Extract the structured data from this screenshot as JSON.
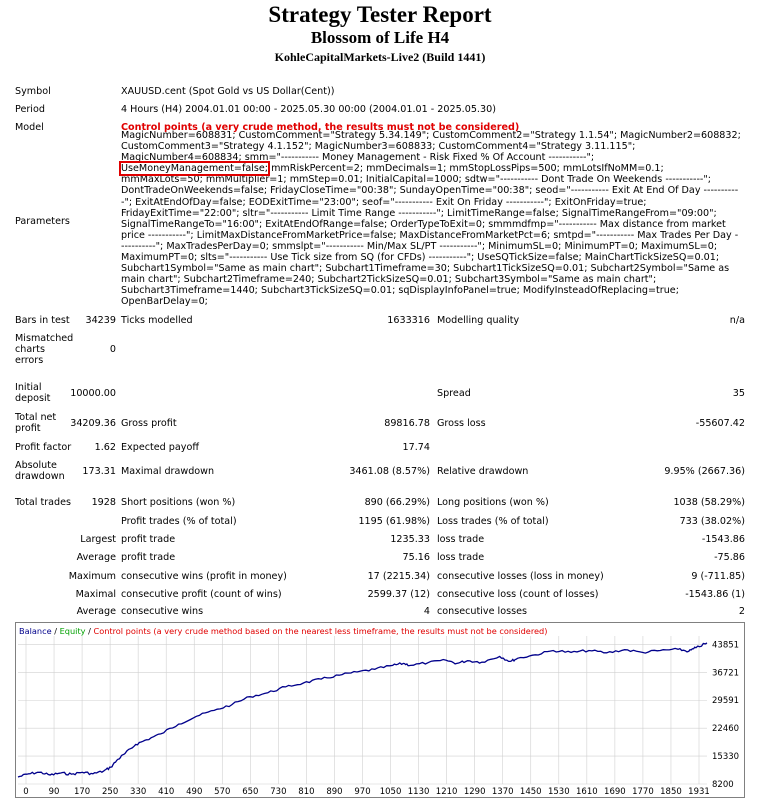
{
  "header": {
    "title": "Strategy Tester Report",
    "subtitle": "Blossom of Life H4",
    "server": "KohleCapitalMarkets-Live2 (Build 1441)"
  },
  "info": {
    "symbol_label": "Symbol",
    "symbol_value": "XAUUSD.cent (Spot Gold vs US Dollar(Cent))",
    "period_label": "Period",
    "period_value": "4 Hours (H4) 2004.01.01 00:00 - 2025.05.30 00:00 (2004.01.01 - 2025.05.30)",
    "model_label": "Model",
    "model_value": "Control points (a very crude method, the results must not be considered)",
    "parameters_label": "Parameters",
    "params_before": "MagicNumber=608831; CustomComment=\"Strategy 5.34.149\"; CustomComment2=\"Strategy 1.1.54\"; MagicNumber2=608832; CustomComment3=\"Strategy 4.1.152\"; MagicNumber3=608833; CustomComment4=\"Strategy 3.11.115\"; MagicNumber4=608834; smm=\"----------- Money Management - Risk Fixed % Of Account -----------\"; ",
    "params_highlight": "UseMoneyManagement=false;",
    "params_after": " mmRiskPercent=2; mmDecimals=1; mmStopLossPips=500; mmLotsIfNoMM=0.1; mmMaxLots=50; mmMultiplier=1; mmStep=0.01; InitialCapital=1000; sdtw=\"----------- Dont Trade On Weekends -----------\"; DontTradeOnWeekends=false; FridayCloseTime=\"00:38\"; SundayOpenTime=\"00:38\"; seod=\"----------- Exit At End Of Day -----------\"; ExitAtEndOfDay=false; EODExitTime=\"23:00\"; seof=\"----------- Exit On Friday -----------\"; ExitOnFriday=true; FridayExitTime=\"22:00\"; sltr=\"----------- Limit Time Range -----------\"; LimitTimeRange=false; SignalTimeRangeFrom=\"09:00\"; SignalTimeRangeTo=\"16:00\"; ExitAtEndOfRange=false; OrderTypeToExit=0; smmmdfmp=\"----------- Max distance from market price -----------\"; LimitMaxDistanceFromMarketPrice=false; MaxDistanceFromMarketPct=6; smtpd=\"----------- Max Trades Per Day -----------\"; MaxTradesPerDay=0; smmslpt=\"----------- Min/Max SL/PT -----------\"; MinimumSL=0; MinimumPT=0; MaximumSL=0; MaximumPT=0; slts=\"----------- Use Tick size from SQ (for CFDs) -----------\"; UseSQTickSize=false; MainChartTickSizeSQ=0.01; Subchart1Symbol=\"Same as main chart\"; Subchart1Timeframe=30; Subchart1TickSizeSQ=0.01; Subchart2Symbol=\"Same as main chart\"; Subchart2Timeframe=240; Subchart2TickSizeSQ=0.01; Subchart3Symbol=\"Same as main chart\"; Subchart3Timeframe=1440; Subchart3TickSizeSQ=0.01; sqDisplayInfoPanel=true; ModifyInsteadOfReplacing=true; OpenBarDelay=0;"
  },
  "stats": {
    "bars_label": "Bars in test",
    "bars_value": "34239",
    "ticks_label": "Ticks modelled",
    "ticks_value": "1633316",
    "quality_label": "Modelling quality",
    "quality_value": "n/a",
    "mismatch_label": "Mismatched charts errors",
    "mismatch_value": "0",
    "deposit_label": "Initial deposit",
    "deposit_value": "10000.00",
    "spread_label": "Spread",
    "spread_value": "35",
    "netprofit_label": "Total net profit",
    "netprofit_value": "34209.36",
    "grossprofit_label": "Gross profit",
    "grossprofit_value": "89816.78",
    "grossloss_label": "Gross loss",
    "grossloss_value": "-55607.42",
    "pf_label": "Profit factor",
    "pf_value": "1.62",
    "payoff_label": "Expected payoff",
    "payoff_value": "17.74",
    "absdd_label": "Absolute drawdown",
    "absdd_value": "173.31",
    "maxdd_label": "Maximal drawdown",
    "maxdd_value": "3461.08 (8.57%)",
    "reldd_label": "Relative drawdown",
    "reldd_value": "9.95% (2667.36)",
    "trades_label": "Total trades",
    "trades_value": "1928",
    "short_label": "Short positions (won %)",
    "short_value": "890 (66.29%)",
    "long_label": "Long positions (won %)",
    "long_value": "1038 (58.29%)",
    "ptrades_label": "Profit trades (% of total)",
    "ptrades_value": "1195 (61.98%)",
    "ltrades_label": "Loss trades (% of total)",
    "ltrades_value": "733 (38.02%)",
    "largest_label": "Largest",
    "largest_p_label": "profit trade",
    "largest_p_value": "1235.33",
    "largest_l_label": "loss trade",
    "largest_l_value": "-1543.86",
    "average_label": "Average",
    "average_p_label": "profit trade",
    "average_p_value": "75.16",
    "average_l_label": "loss trade",
    "average_l_value": "-75.86",
    "maximum_label": "Maximum",
    "maxwins_label": "consecutive wins (profit in money)",
    "maxwins_value": "17 (2215.34)",
    "maxlosses_label": "consecutive losses (loss in money)",
    "maxlosses_value": "9 (-711.85)",
    "maximal_label": "Maximal",
    "maxprofit_label": "consecutive profit (count of wins)",
    "maxprofit_value": "2599.37 (12)",
    "maxloss_label": "consecutive loss (count of losses)",
    "maxloss_value": "-1543.86 (1)",
    "avg2_label": "Average",
    "avgwins_label": "consecutive wins",
    "avgwins_value": "4",
    "avglosses_label": "consecutive losses",
    "avglosses_value": "2"
  },
  "legend": {
    "balance": "Balance",
    "sep1": " / ",
    "equity": "Equity",
    "sep2": " / ",
    "control": "Control points (a very crude method based on the nearest less timeframe, the results must not be considered)"
  },
  "chart_data": {
    "type": "line",
    "xlim": [
      0,
      1931
    ],
    "ylim": [
      8200,
      46000
    ],
    "x_ticks": [
      "0",
      "90",
      "170",
      "250",
      "330",
      "410",
      "490",
      "570",
      "650",
      "730",
      "810",
      "890",
      "970",
      "1050",
      "1130",
      "1210",
      "1290",
      "1370",
      "1450",
      "1530",
      "1610",
      "1690",
      "1770",
      "1850",
      "1931"
    ],
    "y_ticks": [
      43851,
      36721,
      29591,
      22460,
      15330,
      8200
    ],
    "colors": {
      "balance": "#00008b",
      "equity": "#00a000",
      "control": "#e00000",
      "grid": "#d0d0d0"
    },
    "series": [
      {
        "name": "Balance",
        "x": [
          0,
          30,
          60,
          90,
          120,
          150,
          180,
          210,
          240,
          260,
          280,
          300,
          330,
          360,
          400,
          450,
          500,
          550,
          600,
          650,
          700,
          750,
          800,
          850,
          900,
          950,
          1000,
          1050,
          1080,
          1100,
          1150,
          1200,
          1230,
          1260,
          1300,
          1350,
          1380,
          1400,
          1450,
          1500,
          1550,
          1600,
          1650,
          1700,
          1750,
          1800,
          1850,
          1880,
          1900,
          1931
        ],
        "y": [
          10000,
          10800,
          11200,
          10500,
          11000,
          10700,
          11200,
          10800,
          11500,
          12500,
          14500,
          16000,
          18300,
          19500,
          21000,
          23500,
          25500,
          27000,
          28500,
          30500,
          31500,
          33000,
          34000,
          35000,
          36000,
          36800,
          37500,
          38500,
          39000,
          38500,
          39200,
          39800,
          39000,
          39700,
          39300,
          40800,
          39500,
          40300,
          41200,
          42300,
          41800,
          42300,
          41700,
          42500,
          41800,
          42300,
          42600,
          42100,
          43000,
          44200
        ]
      }
    ]
  }
}
